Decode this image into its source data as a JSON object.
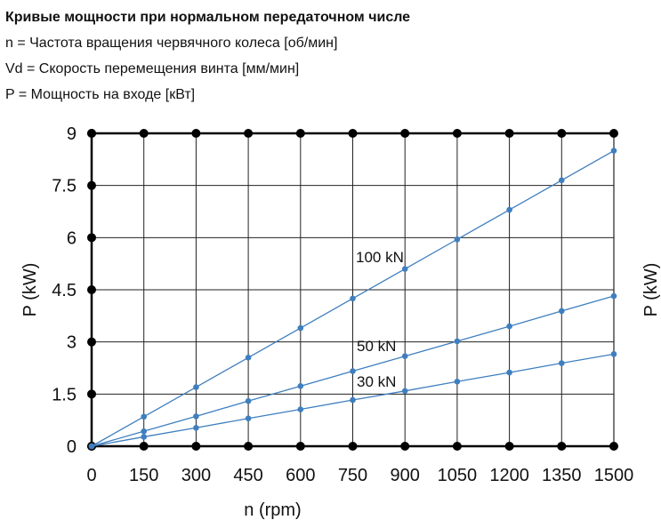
{
  "header": {
    "title": "Кривые мощности при нормальном передаточном числе",
    "lines": [
      "n = Частота вращения червячного колеса [об/мин]",
      "Vd = Скорость перемещения винта [мм/мин]",
      "P = Мощность на входе [кВт]"
    ]
  },
  "chart_data": {
    "type": "line",
    "xlabel": "n (rpm)",
    "ylabel": "P (kW)",
    "right_ylabel_partial": "P (kW)",
    "xlim": [
      0,
      1500
    ],
    "ylim": [
      0,
      9
    ],
    "xticks": [
      0,
      150,
      300,
      450,
      600,
      750,
      900,
      1050,
      1200,
      1350,
      1500
    ],
    "xtick_labels": [
      "0",
      "150",
      "300",
      "450",
      "600",
      "750",
      "900",
      "1050",
      "1200",
      "1350",
      "1500"
    ],
    "yticks": [
      0,
      1.5,
      3,
      4.5,
      6,
      7.5,
      9
    ],
    "ytick_labels": [
      "0",
      "1.5",
      "3",
      "4.5",
      "6",
      "7.5",
      "9"
    ],
    "grid": true,
    "line_color": "#3f7fbf",
    "x": [
      0,
      150,
      300,
      450,
      600,
      750,
      900,
      1050,
      1200,
      1350,
      1500
    ],
    "series": [
      {
        "name": "100 kN",
        "values": [
          0,
          0.85,
          1.7,
          2.55,
          3.4,
          4.25,
          5.1,
          5.95,
          6.8,
          7.65,
          8.5
        ]
      },
      {
        "name": "50 kN",
        "values": [
          0,
          0.43,
          0.86,
          1.3,
          1.73,
          2.16,
          2.59,
          3.02,
          3.45,
          3.89,
          4.32
        ]
      },
      {
        "name": "30 kN",
        "values": [
          0,
          0.27,
          0.53,
          0.8,
          1.06,
          1.33,
          1.59,
          1.86,
          2.12,
          2.39,
          2.65
        ]
      }
    ]
  }
}
